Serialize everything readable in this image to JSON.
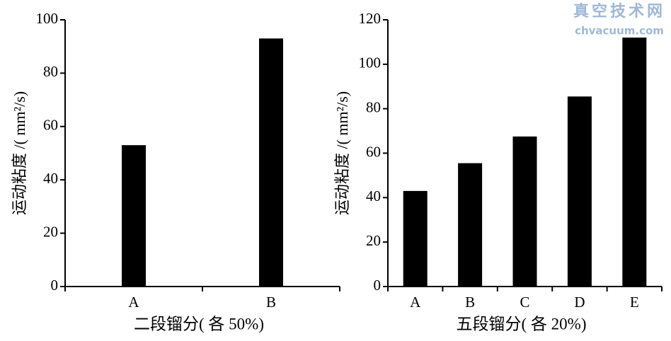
{
  "chart_data": [
    {
      "type": "bar",
      "ylabel": "运动粘度 /( mm²/s)",
      "xlabel": "二段镏分( 各 50%)",
      "categories": [
        "A",
        "B"
      ],
      "values": [
        53,
        93
      ],
      "color": "#000000",
      "ylim": [
        0,
        100
      ],
      "yticks": [
        0,
        20,
        40,
        60,
        80,
        100
      ]
    },
    {
      "type": "bar",
      "ylabel": "运动粘度 /( mm²/s)",
      "xlabel": "五段镏分( 各 20%)",
      "categories": [
        "A",
        "B",
        "C",
        "D",
        "E"
      ],
      "values": [
        43,
        55.5,
        67.5,
        85.5,
        112
      ],
      "color": "#000000",
      "ylim": [
        0,
        120
      ],
      "yticks": [
        0,
        20,
        40,
        60,
        80,
        100,
        120
      ]
    }
  ],
  "watermark": {
    "title": "真空技术网",
    "url": "chvacuum.com"
  }
}
